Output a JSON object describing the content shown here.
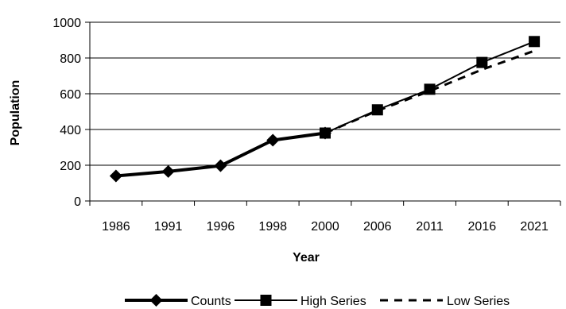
{
  "chart_data": {
    "type": "line",
    "categories": [
      "1986",
      "1991",
      "1996",
      "1998",
      "2000",
      "2006",
      "2011",
      "2016",
      "2021"
    ],
    "xlabel": "Year",
    "ylabel": "Population",
    "ylim": [
      0,
      1000
    ],
    "yticks": [
      "0",
      "200",
      "400",
      "600",
      "800",
      "1000"
    ],
    "grid": true,
    "legend_position": "bottom",
    "series": [
      {
        "name": "Counts",
        "values": [
          140,
          165,
          197,
          340,
          380,
          null,
          null,
          null,
          null
        ],
        "color": "#000000",
        "marker": "diamond",
        "line": "thick"
      },
      {
        "name": "High Series",
        "values": [
          null,
          null,
          null,
          null,
          380,
          510,
          625,
          775,
          892
        ],
        "color": "#000000",
        "marker": "square",
        "line": "solid"
      },
      {
        "name": "Low Series",
        "values": [
          null,
          null,
          null,
          null,
          380,
          505,
          615,
          735,
          840
        ],
        "color": "#000000",
        "marker": "none",
        "line": "dashed"
      }
    ]
  }
}
